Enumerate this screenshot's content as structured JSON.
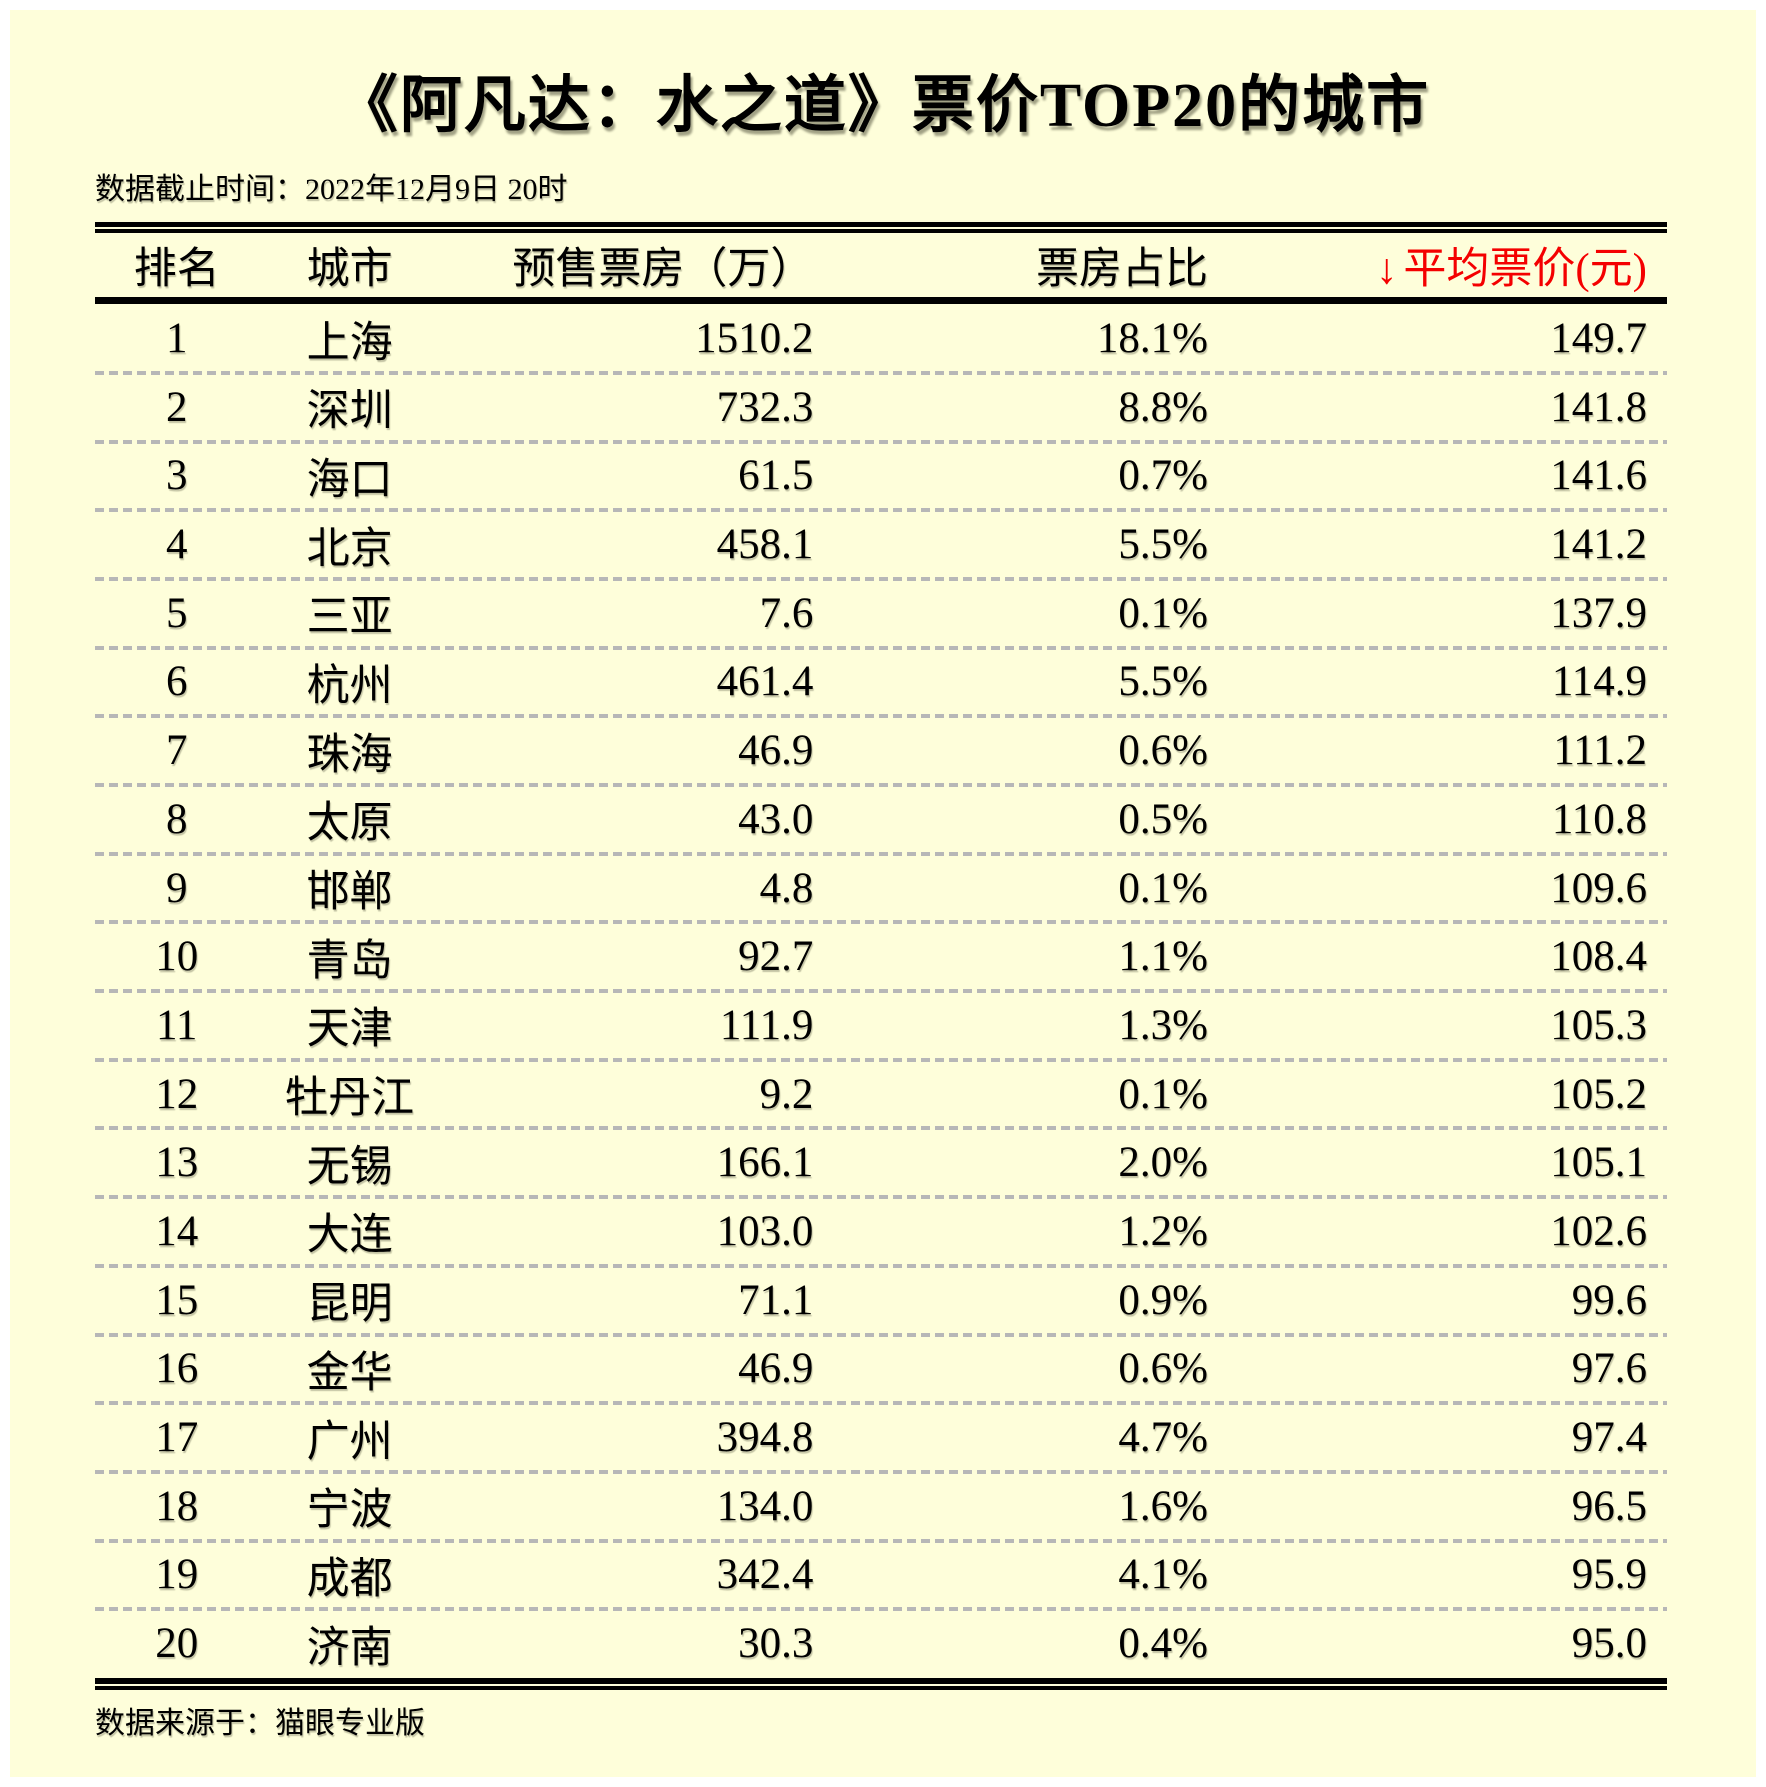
{
  "header": {
    "title": "《阿凡达：水之道》票价TOP20的城市",
    "cutoff_note": "数据截止时间：2022年12月9日 20时"
  },
  "footer": {
    "source_note": "数据来源于：猫眼专业版"
  },
  "colors": {
    "background": "#FEFEDA",
    "border": "#FFFFFF",
    "text": "#000000",
    "accent_red": "#F40000",
    "separator_gray": "#B7B7B7"
  },
  "table": {
    "columns": {
      "rank": "排名",
      "city": "城市",
      "presale": "预售票房（万）",
      "share": "票房占比",
      "price_sort_arrow": "↓",
      "price": "平均票价(元)"
    },
    "rows": [
      {
        "rank": "1",
        "city": "上海",
        "presale": "1510.2",
        "share": "18.1%",
        "price": "149.7"
      },
      {
        "rank": "2",
        "city": "深圳",
        "presale": "732.3",
        "share": "8.8%",
        "price": "141.8"
      },
      {
        "rank": "3",
        "city": "海口",
        "presale": "61.5",
        "share": "0.7%",
        "price": "141.6"
      },
      {
        "rank": "4",
        "city": "北京",
        "presale": "458.1",
        "share": "5.5%",
        "price": "141.2"
      },
      {
        "rank": "5",
        "city": "三亚",
        "presale": "7.6",
        "share": "0.1%",
        "price": "137.9"
      },
      {
        "rank": "6",
        "city": "杭州",
        "presale": "461.4",
        "share": "5.5%",
        "price": "114.9"
      },
      {
        "rank": "7",
        "city": "珠海",
        "presale": "46.9",
        "share": "0.6%",
        "price": "111.2"
      },
      {
        "rank": "8",
        "city": "太原",
        "presale": "43.0",
        "share": "0.5%",
        "price": "110.8"
      },
      {
        "rank": "9",
        "city": "邯郸",
        "presale": "4.8",
        "share": "0.1%",
        "price": "109.6"
      },
      {
        "rank": "10",
        "city": "青岛",
        "presale": "92.7",
        "share": "1.1%",
        "price": "108.4"
      },
      {
        "rank": "11",
        "city": "天津",
        "presale": "111.9",
        "share": "1.3%",
        "price": "105.3"
      },
      {
        "rank": "12",
        "city": "牡丹江",
        "presale": "9.2",
        "share": "0.1%",
        "price": "105.2"
      },
      {
        "rank": "13",
        "city": "无锡",
        "presale": "166.1",
        "share": "2.0%",
        "price": "105.1"
      },
      {
        "rank": "14",
        "city": "大连",
        "presale": "103.0",
        "share": "1.2%",
        "price": "102.6"
      },
      {
        "rank": "15",
        "city": "昆明",
        "presale": "71.1",
        "share": "0.9%",
        "price": "99.6"
      },
      {
        "rank": "16",
        "city": "金华",
        "presale": "46.9",
        "share": "0.6%",
        "price": "97.6"
      },
      {
        "rank": "17",
        "city": "广州",
        "presale": "394.8",
        "share": "4.7%",
        "price": "97.4"
      },
      {
        "rank": "18",
        "city": "宁波",
        "presale": "134.0",
        "share": "1.6%",
        "price": "96.5"
      },
      {
        "rank": "19",
        "city": "成都",
        "presale": "342.4",
        "share": "4.1%",
        "price": "95.9"
      },
      {
        "rank": "20",
        "city": "济南",
        "presale": "30.3",
        "share": "0.4%",
        "price": "95.0"
      }
    ]
  },
  "chart_data": {
    "type": "table",
    "title": "《阿凡达：水之道》票价TOP20的城市",
    "subtitle": "数据截止时间：2022年12月9日 20时",
    "source": "数据来源于：猫眼专业版",
    "columns": [
      "排名",
      "城市",
      "预售票房（万）",
      "票房占比",
      "平均票价(元)"
    ],
    "sorted_by": "平均票价(元) descending",
    "rows": [
      [
        1,
        "上海",
        1510.2,
        18.1,
        149.7
      ],
      [
        2,
        "深圳",
        732.3,
        8.8,
        141.8
      ],
      [
        3,
        "海口",
        61.5,
        0.7,
        141.6
      ],
      [
        4,
        "北京",
        458.1,
        5.5,
        141.2
      ],
      [
        5,
        "三亚",
        7.6,
        0.1,
        137.9
      ],
      [
        6,
        "杭州",
        461.4,
        5.5,
        114.9
      ],
      [
        7,
        "珠海",
        46.9,
        0.6,
        111.2
      ],
      [
        8,
        "太原",
        43.0,
        0.5,
        110.8
      ],
      [
        9,
        "邯郸",
        4.8,
        0.1,
        109.6
      ],
      [
        10,
        "青岛",
        92.7,
        1.1,
        108.4
      ],
      [
        11,
        "天津",
        111.9,
        1.3,
        105.3
      ],
      [
        12,
        "牡丹江",
        9.2,
        0.1,
        105.2
      ],
      [
        13,
        "无锡",
        166.1,
        2.0,
        105.1
      ],
      [
        14,
        "大连",
        103.0,
        1.2,
        102.6
      ],
      [
        15,
        "昆明",
        71.1,
        0.9,
        99.6
      ],
      [
        16,
        "金华",
        46.9,
        0.6,
        97.6
      ],
      [
        17,
        "广州",
        394.8,
        4.7,
        97.4
      ],
      [
        18,
        "宁波",
        134.0,
        1.6,
        96.5
      ],
      [
        19,
        "成都",
        342.4,
        4.1,
        95.9
      ],
      [
        20,
        "济南",
        30.3,
        0.4,
        95.0
      ]
    ]
  }
}
